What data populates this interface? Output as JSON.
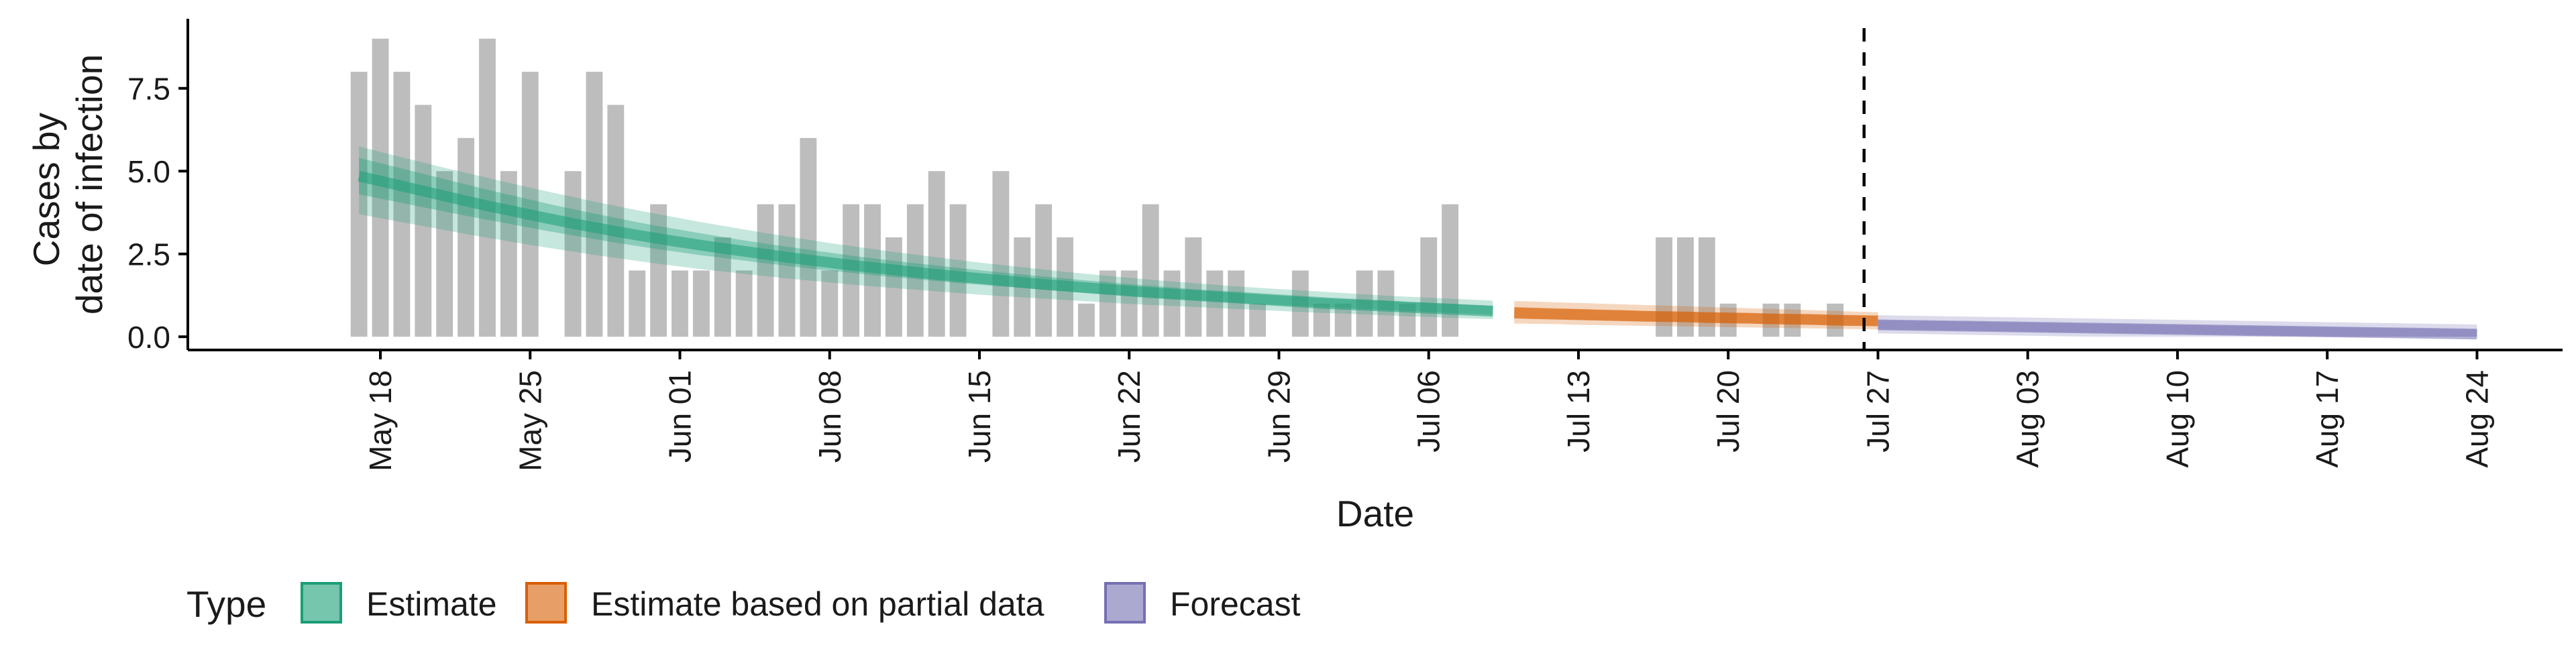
{
  "chart_data": {
    "type": "bar",
    "title": "",
    "xlabel": "Date",
    "ylabel_lines": [
      "Cases by",
      "date of infection"
    ],
    "ylim": [
      -0.4,
      9.6
    ],
    "y_ticks": [
      0.0,
      2.5,
      5.0,
      7.5
    ],
    "y_tick_labels": [
      "0.0",
      "2.5",
      "5.0",
      "7.5"
    ],
    "x_range": [
      "2020-05-09",
      "2020-08-28"
    ],
    "x_ticks": [
      "2020-05-18",
      "2020-05-25",
      "2020-06-01",
      "2020-06-08",
      "2020-06-15",
      "2020-06-22",
      "2020-06-29",
      "2020-07-06",
      "2020-07-13",
      "2020-07-20",
      "2020-07-27",
      "2020-08-03",
      "2020-08-10",
      "2020-08-17",
      "2020-08-24"
    ],
    "x_tick_labels": [
      "May 18",
      "May 25",
      "Jun 01",
      "Jun 08",
      "Jun 15",
      "Jun 22",
      "Jun 29",
      "Jul 06",
      "Jul 13",
      "Jul 20",
      "Jul 27",
      "Aug 03",
      "Aug 10",
      "Aug 17",
      "Aug 24"
    ],
    "forecast_line_date": "2020-07-26",
    "bars": {
      "start_date": "2020-05-17",
      "color": "#bdbdbd",
      "values": [
        8,
        9,
        8,
        7,
        5,
        6,
        9,
        5,
        8,
        0,
        5,
        8,
        7,
        2,
        4,
        2,
        2,
        3,
        2,
        4,
        4,
        6,
        2,
        4,
        4,
        3,
        4,
        5,
        4,
        0,
        5,
        3,
        4,
        3,
        1,
        2,
        2,
        4,
        2,
        3,
        2,
        2,
        1,
        0,
        2,
        1,
        1,
        2,
        2,
        1,
        3,
        4,
        0,
        0,
        0,
        0,
        0,
        0,
        0,
        0,
        0,
        3,
        3,
        3,
        1,
        0,
        1,
        1,
        0,
        1
      ]
    },
    "series": [
      {
        "name": "Estimate",
        "color": "#1b9e77",
        "start_date": "2020-05-17",
        "median": [
          4.85,
          4.7,
          4.55,
          4.4,
          4.25,
          4.1,
          3.95,
          3.82,
          3.68,
          3.55,
          3.42,
          3.3,
          3.18,
          3.07,
          2.96,
          2.86,
          2.76,
          2.67,
          2.58,
          2.49,
          2.4,
          2.32,
          2.24,
          2.16,
          2.09,
          2.02,
          1.95,
          1.88,
          1.82,
          1.76,
          1.7,
          1.64,
          1.58,
          1.53,
          1.48,
          1.43,
          1.38,
          1.33,
          1.29,
          1.25,
          1.21,
          1.17,
          1.13,
          1.09,
          1.05,
          1.01,
          0.98,
          0.95,
          0.92,
          0.89,
          0.86,
          0.83,
          0.8,
          0.77
        ],
        "inner_lower": [
          4.3,
          4.17,
          4.04,
          3.91,
          3.78,
          3.65,
          3.53,
          3.41,
          3.29,
          3.17,
          3.06,
          2.95,
          2.84,
          2.74,
          2.64,
          2.55,
          2.46,
          2.38,
          2.3,
          2.22,
          2.14,
          2.07,
          2.0,
          1.93,
          1.86,
          1.8,
          1.74,
          1.68,
          1.62,
          1.57,
          1.52,
          1.47,
          1.42,
          1.37,
          1.32,
          1.28,
          1.23,
          1.19,
          1.15,
          1.11,
          1.07,
          1.03,
          0.99,
          0.96,
          0.93,
          0.9,
          0.87,
          0.84,
          0.81,
          0.78,
          0.75,
          0.72,
          0.69,
          0.66
        ],
        "inner_upper": [
          5.4,
          5.24,
          5.08,
          4.92,
          4.76,
          4.6,
          4.44,
          4.29,
          4.14,
          3.99,
          3.85,
          3.72,
          3.59,
          3.46,
          3.34,
          3.23,
          3.12,
          3.01,
          2.91,
          2.81,
          2.72,
          2.63,
          2.54,
          2.45,
          2.37,
          2.29,
          2.22,
          2.15,
          2.08,
          2.01,
          1.94,
          1.88,
          1.82,
          1.76,
          1.7,
          1.65,
          1.59,
          1.54,
          1.49,
          1.44,
          1.4,
          1.36,
          1.32,
          1.28,
          1.24,
          1.2,
          1.16,
          1.13,
          1.1,
          1.06,
          1.03,
          1.0,
          0.97,
          0.94
        ],
        "outer_lower": [
          3.7,
          3.58,
          3.46,
          3.34,
          3.22,
          3.1,
          2.99,
          2.88,
          2.77,
          2.67,
          2.57,
          2.47,
          2.38,
          2.29,
          2.2,
          2.12,
          2.04,
          1.97,
          1.9,
          1.83,
          1.76,
          1.7,
          1.64,
          1.58,
          1.52,
          1.47,
          1.42,
          1.37,
          1.32,
          1.27,
          1.23,
          1.19,
          1.15,
          1.11,
          1.07,
          1.03,
          0.99,
          0.96,
          0.93,
          0.9,
          0.87,
          0.84,
          0.81,
          0.78,
          0.75,
          0.72,
          0.7,
          0.67,
          0.65,
          0.62,
          0.6,
          0.57,
          0.55,
          0.53
        ],
        "outer_upper": [
          5.75,
          5.58,
          5.42,
          5.26,
          5.1,
          4.95,
          4.8,
          4.65,
          4.5,
          4.36,
          4.22,
          4.08,
          3.95,
          3.82,
          3.7,
          3.58,
          3.46,
          3.35,
          3.24,
          3.13,
          3.03,
          2.93,
          2.83,
          2.74,
          2.65,
          2.56,
          2.48,
          2.4,
          2.32,
          2.24,
          2.17,
          2.1,
          2.03,
          1.96,
          1.9,
          1.84,
          1.78,
          1.72,
          1.67,
          1.62,
          1.57,
          1.52,
          1.48,
          1.44,
          1.4,
          1.36,
          1.32,
          1.28,
          1.24,
          1.21,
          1.18,
          1.15,
          1.12,
          1.09
        ]
      },
      {
        "name": "Estimate based on partial data",
        "color": "#d95f02",
        "start_date": "2020-07-10",
        "median": [
          0.72,
          0.7,
          0.68,
          0.67,
          0.65,
          0.64,
          0.62,
          0.61,
          0.6,
          0.58,
          0.57,
          0.56,
          0.54,
          0.53,
          0.52,
          0.5,
          0.49,
          0.48
        ],
        "inner_lower": [
          0.55,
          0.53,
          0.52,
          0.5,
          0.49,
          0.47,
          0.46,
          0.45,
          0.44,
          0.42,
          0.41,
          0.4,
          0.38,
          0.37,
          0.36,
          0.34,
          0.33,
          0.32
        ],
        "inner_upper": [
          0.9,
          0.88,
          0.86,
          0.84,
          0.82,
          0.8,
          0.78,
          0.76,
          0.75,
          0.73,
          0.72,
          0.71,
          0.69,
          0.68,
          0.67,
          0.65,
          0.64,
          0.63
        ],
        "outer_lower": [
          0.4,
          0.39,
          0.38,
          0.36,
          0.35,
          0.34,
          0.33,
          0.32,
          0.31,
          0.3,
          0.29,
          0.28,
          0.27,
          0.26,
          0.25,
          0.24,
          0.23,
          0.22
        ],
        "outer_upper": [
          1.08,
          1.06,
          1.04,
          1.02,
          1.0,
          0.98,
          0.96,
          0.94,
          0.92,
          0.9,
          0.88,
          0.86,
          0.84,
          0.82,
          0.8,
          0.78,
          0.76,
          0.74
        ]
      },
      {
        "name": "Forecast",
        "color": "#7570b3",
        "start_date": "2020-07-27",
        "median": [
          0.36,
          0.35,
          0.34,
          0.33,
          0.32,
          0.31,
          0.3,
          0.29,
          0.28,
          0.27,
          0.26,
          0.25,
          0.24,
          0.23,
          0.22,
          0.21,
          0.2,
          0.19,
          0.18,
          0.17,
          0.16,
          0.15,
          0.14,
          0.13,
          0.12,
          0.11,
          0.1,
          0.09,
          0.08
        ],
        "inner_lower": [
          0.22,
          0.21,
          0.2,
          0.19,
          0.18,
          0.17,
          0.16,
          0.15,
          0.14,
          0.13,
          0.12,
          0.11,
          0.1,
          0.09,
          0.08,
          0.07,
          0.06,
          0.05,
          0.04,
          0.03,
          0.02,
          0.01,
          0.0,
          0.0,
          0.0,
          0.0,
          0.0,
          0.0,
          0.0
        ],
        "inner_upper": [
          0.5,
          0.49,
          0.48,
          0.47,
          0.46,
          0.45,
          0.44,
          0.43,
          0.42,
          0.41,
          0.4,
          0.39,
          0.38,
          0.37,
          0.36,
          0.35,
          0.34,
          0.33,
          0.32,
          0.31,
          0.3,
          0.29,
          0.28,
          0.27,
          0.26,
          0.25,
          0.24,
          0.23,
          0.22
        ],
        "outer_lower": [
          0.1,
          0.09,
          0.08,
          0.07,
          0.06,
          0.05,
          0.04,
          0.03,
          0.02,
          0.01,
          0.0,
          0.0,
          0.0,
          0.0,
          0.0,
          0.0,
          0.0,
          0.0,
          0.0,
          0.0,
          0.0,
          0.0,
          0.0,
          0.0,
          0.0,
          0.0,
          0.0,
          0.0,
          0.0
        ],
        "outer_upper": [
          0.65,
          0.64,
          0.63,
          0.62,
          0.61,
          0.6,
          0.59,
          0.58,
          0.57,
          0.56,
          0.55,
          0.54,
          0.53,
          0.52,
          0.51,
          0.5,
          0.49,
          0.48,
          0.47,
          0.46,
          0.45,
          0.44,
          0.43,
          0.42,
          0.41,
          0.4,
          0.39,
          0.38,
          0.37
        ]
      }
    ],
    "legend": {
      "title": "Type",
      "placement": "bottom",
      "items": [
        "Estimate",
        "Estimate based on partial data",
        "Forecast"
      ]
    },
    "grid": false
  }
}
